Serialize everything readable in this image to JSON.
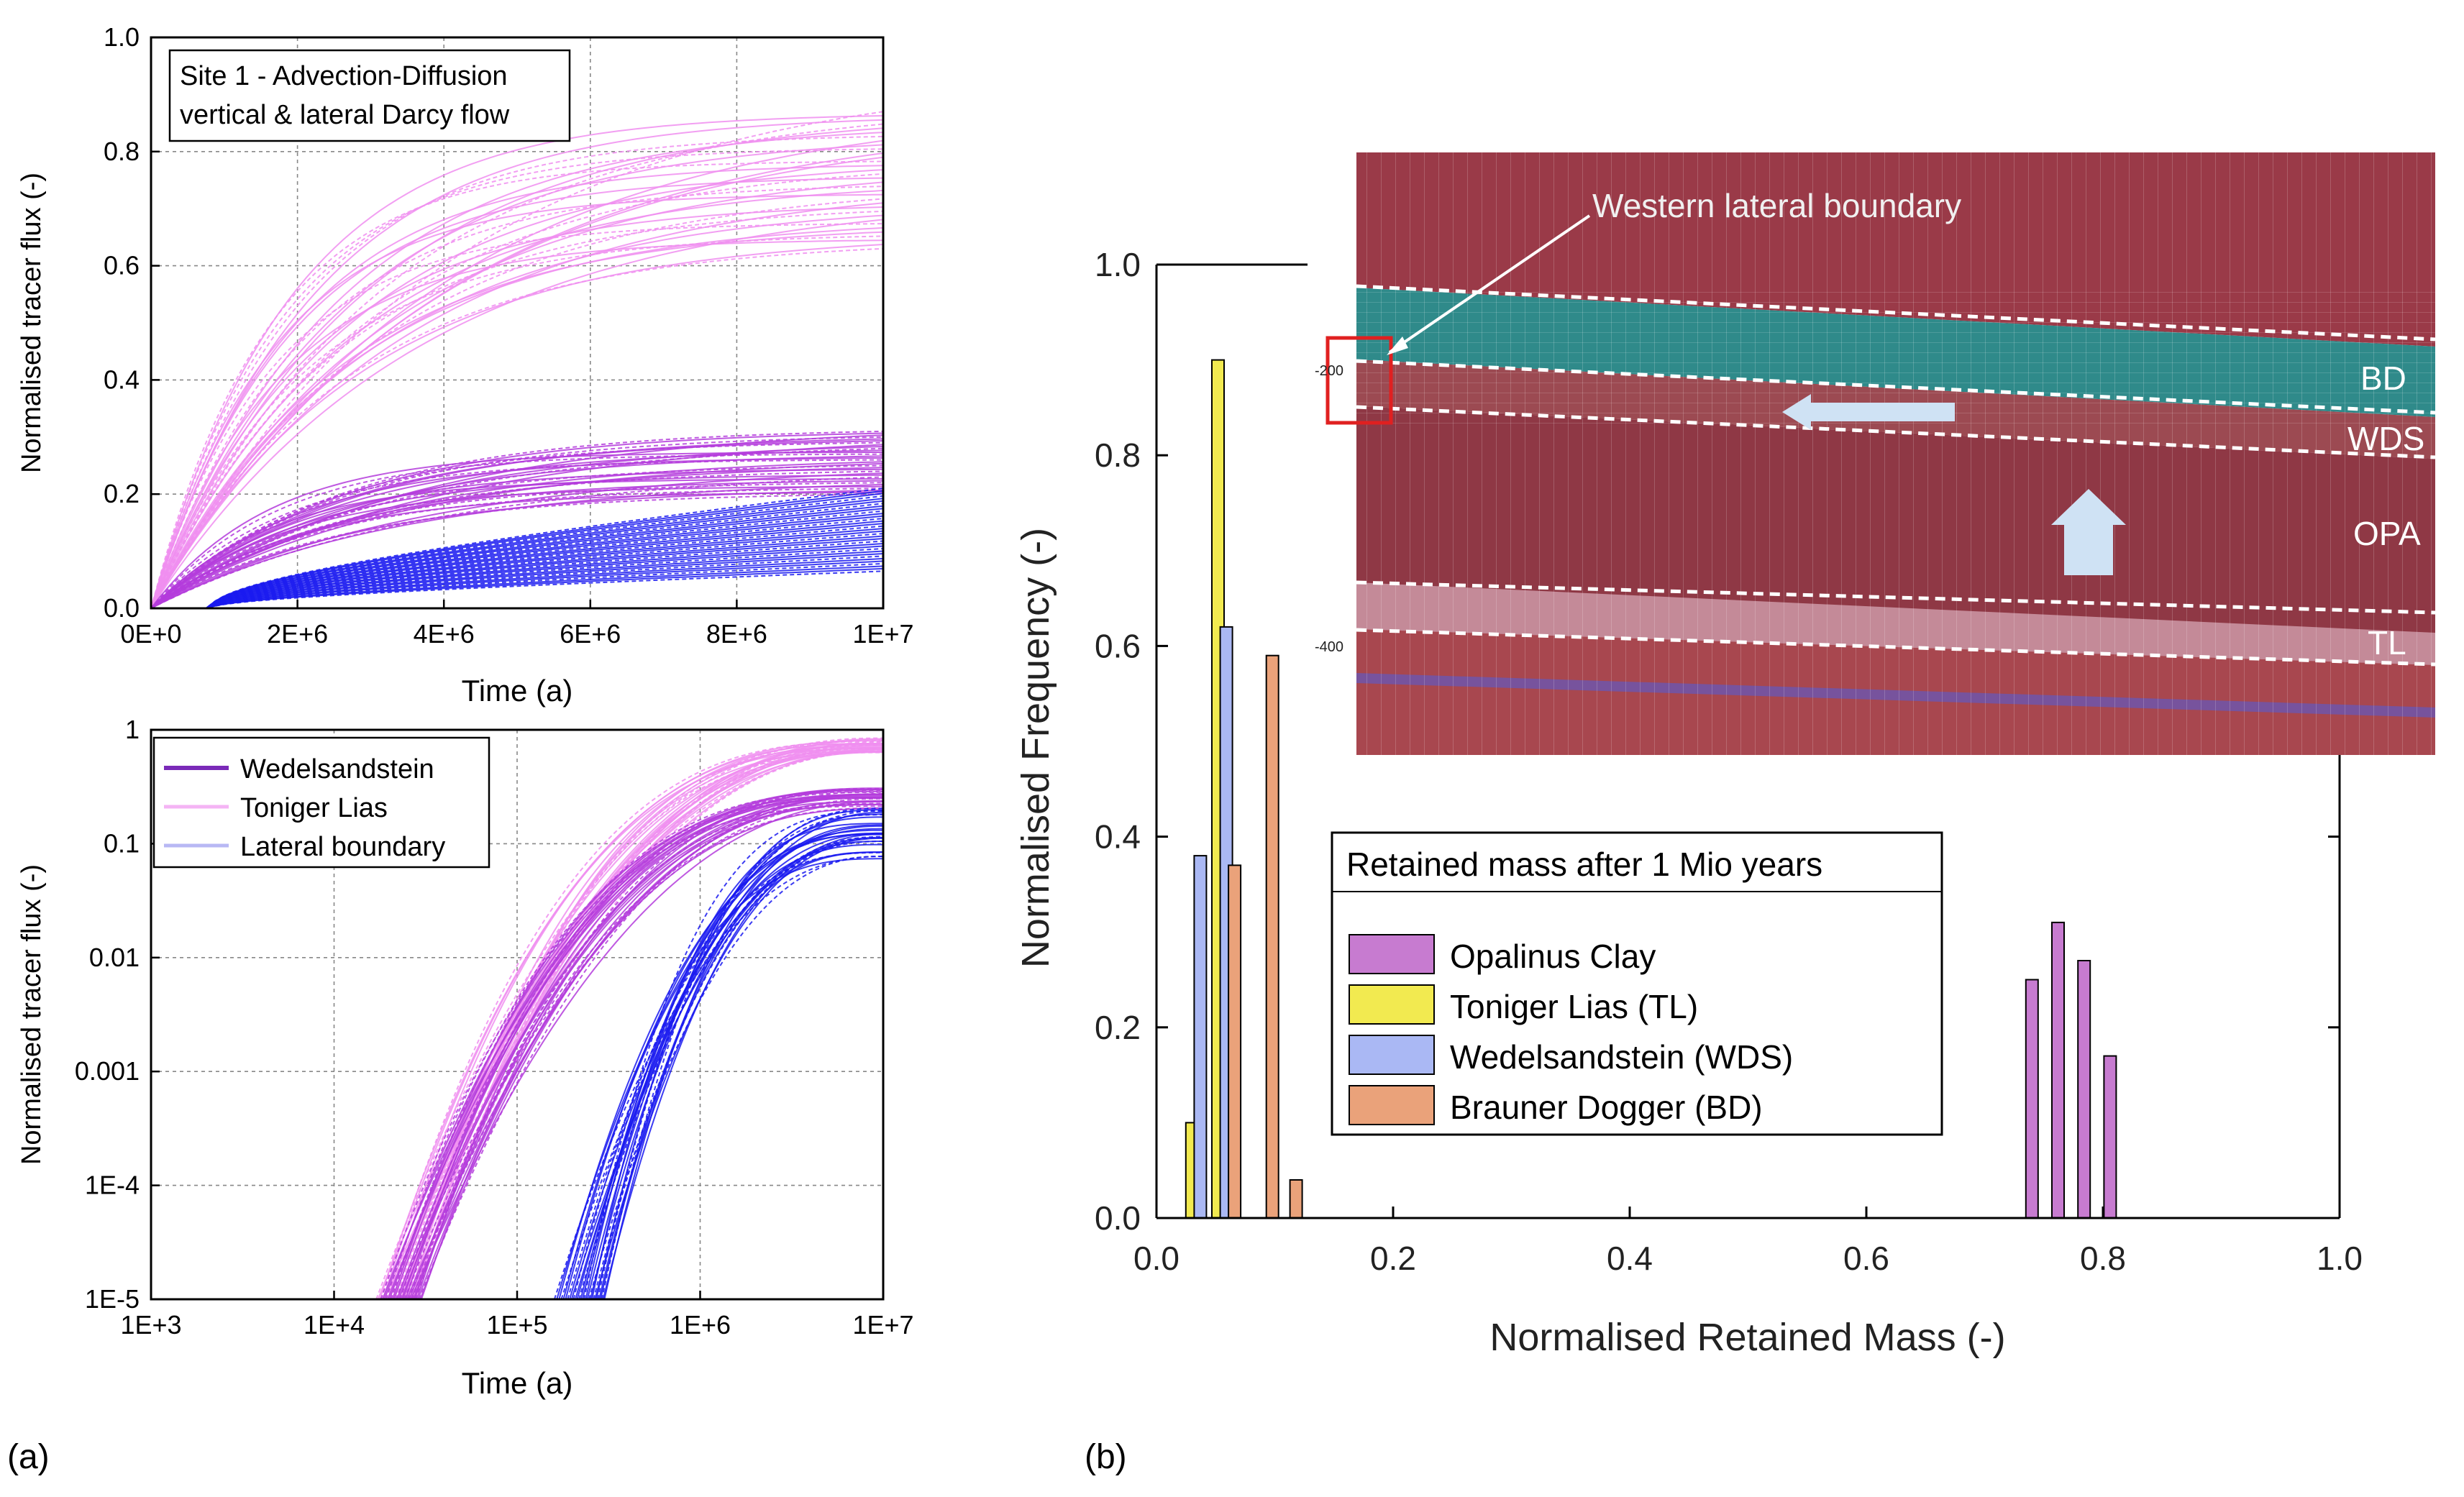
{
  "panel_labels": {
    "a": "(a)",
    "b": "(b)"
  },
  "colors": {
    "pink": "#f08ef0",
    "magenta": "#b43cdc",
    "blue": "#1a1af0",
    "wds_purple": "#7a2ab8",
    "opa_bar": "#c77bd0",
    "tl_bar": "#f2ea50",
    "wds_bar": "#aab8f4",
    "bd_bar": "#eaa27a",
    "mesh_red": "#9a3a48",
    "mesh_teal": "#2a8a8c",
    "mesh_pink": "#c08a98"
  },
  "chart_data": [
    {
      "id": "a-top",
      "type": "line",
      "title_lines": [
        "Site 1 - Advection-Diffusion",
        "vertical & lateral Darcy flow"
      ],
      "xlabel": "Time (a)",
      "ylabel": "Normalised tracer flux (-)",
      "xlim": [
        0,
        10000000
      ],
      "ylim": [
        0,
        1.0
      ],
      "xticks": [
        "0E+0",
        "2E+6",
        "4E+6",
        "6E+6",
        "8E+6",
        "1E+7"
      ],
      "yticks": [
        "0.0",
        "0.2",
        "0.4",
        "0.6",
        "0.8",
        "1.0"
      ],
      "grid": true,
      "series": [
        {
          "name": "Toniger Lias",
          "color": "#f08ef0",
          "ensemble_final_range": [
            0.63,
            0.87
          ],
          "shape": "saturating",
          "onset": 0
        },
        {
          "name": "Wedelsandstein",
          "color": "#b43cdc",
          "ensemble_final_range": [
            0.2,
            0.31
          ],
          "shape": "saturating",
          "onset": 0
        },
        {
          "name": "Lateral boundary",
          "color": "#1a1af0",
          "ensemble_final_range": [
            0.065,
            0.21
          ],
          "shape": "saturating",
          "onset": 800000
        }
      ]
    },
    {
      "id": "a-bottom",
      "type": "line",
      "xlabel": "Time (a)",
      "ylabel": "Normalised tracer flux (-)",
      "xscale": "log",
      "yscale": "log",
      "xlim": [
        1000,
        10000000
      ],
      "ylim": [
        1e-05,
        1
      ],
      "xticks": [
        "1E+3",
        "1E+4",
        "1E+5",
        "1E+6",
        "1E+7"
      ],
      "yticks": [
        "1",
        "0.1",
        "0.01",
        "0.001",
        "1E-4",
        "1E-5"
      ],
      "grid": true,
      "legend": [
        "Wedelsandstein",
        "Toniger Lias",
        "Lateral boundary"
      ],
      "legend_position": "top-left",
      "series": [
        {
          "name": "Wedelsandstein",
          "color": "#b43cdc",
          "onset_range": [
            18000,
            30000
          ],
          "final_range": [
            0.2,
            0.31
          ]
        },
        {
          "name": "Toniger Lias",
          "color": "#f08ef0",
          "onset_range": [
            17000,
            28000
          ],
          "final_range": [
            0.63,
            0.87
          ]
        },
        {
          "name": "Lateral boundary",
          "color": "#1a1af0",
          "onset_range": [
            160000,
            300000
          ],
          "final_range": [
            0.065,
            0.21
          ]
        }
      ]
    },
    {
      "id": "b",
      "type": "bar",
      "xlabel": "Normalised Retained Mass (-)",
      "ylabel": "Normalised Frequency (-)",
      "xlim": [
        0.0,
        1.0
      ],
      "ylim": [
        0.0,
        1.0
      ],
      "xticks": [
        "0.0",
        "0.2",
        "0.4",
        "0.6",
        "0.8",
        "1.0"
      ],
      "yticks": [
        "0.0",
        "0.2",
        "0.4",
        "0.6",
        "0.8",
        "1.0"
      ],
      "legend_title": "Retained mass after 1 Mio years",
      "legend_position": "center",
      "series": [
        {
          "name": "Opalinus Clay",
          "color": "#c77bd0",
          "x": [
            0.74,
            0.762,
            0.784,
            0.806
          ],
          "values": [
            0.25,
            0.31,
            0.27,
            0.17
          ]
        },
        {
          "name": "Toniger Lias (TL)",
          "color": "#f2ea50",
          "x": [
            0.03,
            0.052
          ],
          "values": [
            0.1,
            0.9
          ]
        },
        {
          "name": "Wedelsandstein (WDS)",
          "color": "#aab8f4",
          "x": [
            0.037,
            0.059
          ],
          "values": [
            0.38,
            0.62
          ]
        },
        {
          "name": "Brauner Dogger (BD)",
          "color": "#eaa27a",
          "x": [
            0.066,
            0.098,
            0.118
          ],
          "values": [
            0.37,
            0.59,
            0.04
          ]
        }
      ]
    }
  ],
  "inset": {
    "annotation": "Western lateral boundary",
    "layer_labels": [
      "BD",
      "WDS",
      "OPA",
      "TL"
    ],
    "depth_labels": [
      "-200",
      "-400"
    ]
  }
}
